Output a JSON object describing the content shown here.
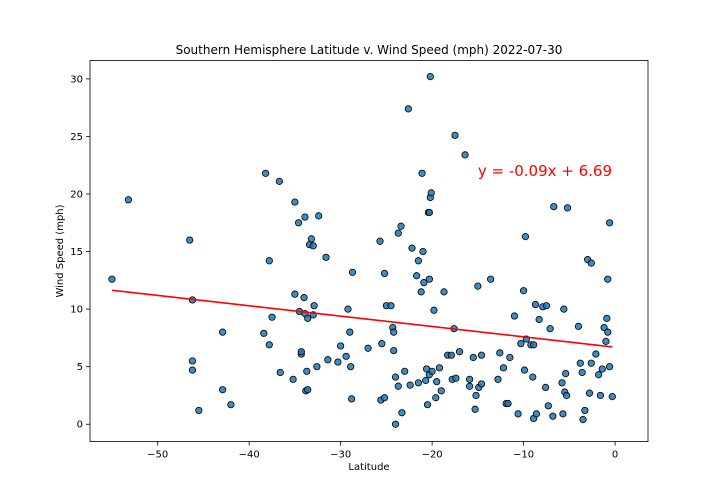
{
  "chart_data": {
    "type": "scatter",
    "title": "Southern Hemisphere Latitude v. Wind Speed (mph) 2022-07-30",
    "xlabel": "Latitude",
    "ylabel": "Wind Speed (mph)",
    "xlim": [
      -57.4,
      3.6
    ],
    "ylim": [
      -1.5,
      31.6
    ],
    "xticks": [
      -50,
      -40,
      -30,
      -20,
      -10,
      0
    ],
    "xtick_labels": [
      "−50",
      "−40",
      "−30",
      "−20",
      "−10",
      "0"
    ],
    "yticks": [
      0,
      5,
      10,
      15,
      20,
      25,
      30
    ],
    "ytick_labels": [
      "0",
      "5",
      "10",
      "15",
      "20",
      "25",
      "30"
    ],
    "grid": false,
    "colors": {
      "point_fill": "#1f77b4",
      "point_edge": "#000000",
      "line": "#ff0000",
      "annotation": "#ff0000"
    },
    "annotation": {
      "text": "y = -0.09x + 6.69",
      "x": -15,
      "y": 22
    },
    "regression": {
      "slope": -0.09,
      "intercept": 6.69,
      "x_range": [
        -55,
        -0.3
      ]
    },
    "points": [
      [
        -55.0,
        12.6
      ],
      [
        -53.2,
        19.5
      ],
      [
        -46.5,
        16.0
      ],
      [
        -46.2,
        10.8
      ],
      [
        -46.2,
        5.5
      ],
      [
        -46.2,
        4.7
      ],
      [
        -45.5,
        1.2
      ],
      [
        -42.9,
        8.0
      ],
      [
        -42.9,
        3.0
      ],
      [
        -42.0,
        1.7
      ],
      [
        -38.4,
        7.9
      ],
      [
        -38.2,
        21.8
      ],
      [
        -37.8,
        14.2
      ],
      [
        -37.8,
        6.9
      ],
      [
        -37.5,
        9.3
      ],
      [
        -36.7,
        21.1
      ],
      [
        -36.6,
        4.5
      ],
      [
        -35.2,
        3.9
      ],
      [
        -35.0,
        11.3
      ],
      [
        -35.0,
        19.3
      ],
      [
        -34.6,
        17.5
      ],
      [
        -34.5,
        9.8
      ],
      [
        -34.3,
        6.1
      ],
      [
        -34.3,
        6.3
      ],
      [
        -34.0,
        11.0
      ],
      [
        -33.9,
        18.0
      ],
      [
        -33.9,
        9.6
      ],
      [
        -33.8,
        2.9
      ],
      [
        -33.7,
        4.6
      ],
      [
        -33.6,
        3.0
      ],
      [
        -33.6,
        9.2
      ],
      [
        -33.4,
        15.6
      ],
      [
        -33.2,
        16.1
      ],
      [
        -33.0,
        9.5
      ],
      [
        -33.0,
        15.5
      ],
      [
        -32.9,
        10.3
      ],
      [
        -32.6,
        5.0
      ],
      [
        -32.4,
        18.1
      ],
      [
        -31.6,
        14.5
      ],
      [
        -31.4,
        5.6
      ],
      [
        -30.3,
        5.4
      ],
      [
        -30.0,
        6.8
      ],
      [
        -29.4,
        5.9
      ],
      [
        -29.2,
        10.0
      ],
      [
        -29.0,
        8.0
      ],
      [
        -28.9,
        5.0
      ],
      [
        -28.8,
        2.2
      ],
      [
        -28.7,
        13.2
      ],
      [
        -27.0,
        6.6
      ],
      [
        -25.7,
        15.9
      ],
      [
        -25.6,
        2.1
      ],
      [
        -25.5,
        7.0
      ],
      [
        -25.2,
        13.1
      ],
      [
        -25.2,
        2.3
      ],
      [
        -25.0,
        10.3
      ],
      [
        -24.5,
        10.3
      ],
      [
        -24.3,
        8.4
      ],
      [
        -24.2,
        8.0
      ],
      [
        -24.2,
        6.4
      ],
      [
        -24.0,
        4.1
      ],
      [
        -24.0,
        0.0
      ],
      [
        -23.7,
        3.3
      ],
      [
        -23.7,
        16.6
      ],
      [
        -23.4,
        17.2
      ],
      [
        -23.3,
        1.0
      ],
      [
        -23.0,
        4.6
      ],
      [
        -22.6,
        27.4
      ],
      [
        -22.4,
        3.4
      ],
      [
        -22.2,
        15.3
      ],
      [
        -21.7,
        12.9
      ],
      [
        -21.5,
        14.2
      ],
      [
        -21.5,
        3.6
      ],
      [
        -21.2,
        11.5
      ],
      [
        -21.1,
        21.8
      ],
      [
        -21.0,
        15.0
      ],
      [
        -20.9,
        12.3
      ],
      [
        -20.7,
        3.8
      ],
      [
        -20.6,
        4.8
      ],
      [
        -20.5,
        1.7
      ],
      [
        -20.4,
        18.4
      ],
      [
        -20.3,
        4.3
      ],
      [
        -20.3,
        12.6
      ],
      [
        -20.3,
        18.4
      ],
      [
        -20.2,
        19.7
      ],
      [
        -20.2,
        30.2
      ],
      [
        -20.1,
        20.1
      ],
      [
        -20.0,
        4.6
      ],
      [
        -19.8,
        9.9
      ],
      [
        -19.6,
        2.3
      ],
      [
        -19.5,
        3.7
      ],
      [
        -19.2,
        4.9
      ],
      [
        -19.0,
        2.9
      ],
      [
        -18.7,
        11.5
      ],
      [
        -18.3,
        6.0
      ],
      [
        -17.9,
        6.0
      ],
      [
        -17.8,
        3.9
      ],
      [
        -17.6,
        8.3
      ],
      [
        -17.5,
        25.1
      ],
      [
        -17.4,
        4.0
      ],
      [
        -17.0,
        6.3
      ],
      [
        -16.4,
        23.4
      ],
      [
        -15.9,
        3.9
      ],
      [
        -15.9,
        3.3
      ],
      [
        -15.5,
        5.8
      ],
      [
        -15.3,
        1.3
      ],
      [
        -15.2,
        2.5
      ],
      [
        -15.0,
        12.0
      ],
      [
        -14.9,
        3.2
      ],
      [
        -14.6,
        6.0
      ],
      [
        -14.6,
        3.5
      ],
      [
        -13.6,
        12.6
      ],
      [
        -12.8,
        3.9
      ],
      [
        -12.6,
        6.2
      ],
      [
        -12.2,
        4.9
      ],
      [
        -11.9,
        1.8
      ],
      [
        -11.7,
        1.8
      ],
      [
        -11.5,
        5.8
      ],
      [
        -11.0,
        9.4
      ],
      [
        -10.6,
        0.9
      ],
      [
        -10.3,
        7.0
      ],
      [
        -10.0,
        11.6
      ],
      [
        -9.9,
        4.7
      ],
      [
        -9.8,
        16.3
      ],
      [
        -9.7,
        7.4
      ],
      [
        -9.2,
        6.9
      ],
      [
        -9.0,
        4.1
      ],
      [
        -8.9,
        6.9
      ],
      [
        -8.9,
        0.5
      ],
      [
        -8.7,
        10.4
      ],
      [
        -8.6,
        0.9
      ],
      [
        -8.3,
        9.1
      ],
      [
        -7.9,
        10.2
      ],
      [
        -7.6,
        3.2
      ],
      [
        -7.5,
        10.3
      ],
      [
        -7.3,
        1.6
      ],
      [
        -7.1,
        8.3
      ],
      [
        -6.8,
        0.7
      ],
      [
        -6.7,
        18.9
      ],
      [
        -5.8,
        3.6
      ],
      [
        -5.7,
        0.9
      ],
      [
        -5.6,
        10.0
      ],
      [
        -5.5,
        2.8
      ],
      [
        -5.4,
        4.4
      ],
      [
        -5.3,
        2.5
      ],
      [
        -5.2,
        18.8
      ],
      [
        -4.0,
        8.5
      ],
      [
        -3.8,
        5.3
      ],
      [
        -3.6,
        4.5
      ],
      [
        -3.5,
        0.4
      ],
      [
        -3.3,
        1.2
      ],
      [
        -3.0,
        14.3
      ],
      [
        -2.8,
        2.7
      ],
      [
        -2.6,
        14.0
      ],
      [
        -2.6,
        5.3
      ],
      [
        -2.1,
        6.1
      ],
      [
        -1.8,
        4.3
      ],
      [
        -1.6,
        2.5
      ],
      [
        -1.4,
        4.8
      ],
      [
        -1.2,
        8.4
      ],
      [
        -1.0,
        7.2
      ],
      [
        -0.9,
        9.2
      ],
      [
        -0.8,
        12.6
      ],
      [
        -0.8,
        8.0
      ],
      [
        -0.6,
        17.5
      ],
      [
        -0.6,
        5.0
      ],
      [
        -0.3,
        2.4
      ]
    ]
  }
}
